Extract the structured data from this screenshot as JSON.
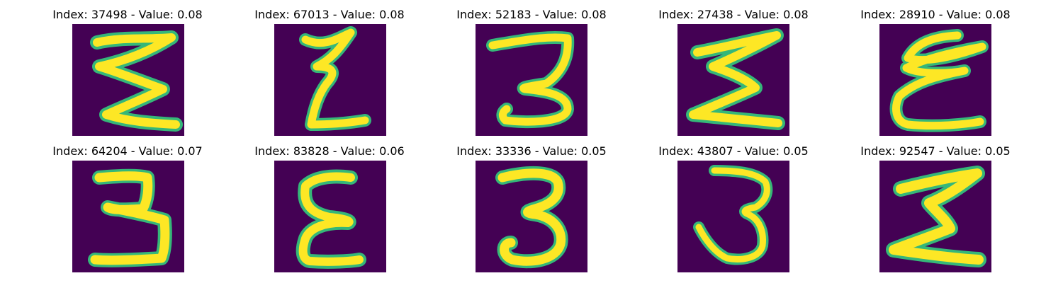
{
  "panels": [
    {
      "title": "Index: 37498 - Value: 0.08",
      "glyph": "sigma"
    },
    {
      "title": "Index: 67013 - Value: 0.08",
      "glyph": "z-slant"
    },
    {
      "title": "Index: 52183 - Value: 0.08",
      "glyph": "three"
    },
    {
      "title": "Index: 27438 - Value: 0.08",
      "glyph": "sigma"
    },
    {
      "title": "Index: 28910 - Value: 0.08",
      "glyph": "epsilon-loop"
    },
    {
      "title": "Index: 64204 - Value: 0.07",
      "glyph": "three"
    },
    {
      "title": "Index: 83828 - Value: 0.06",
      "glyph": "epsilon"
    },
    {
      "title": "Index: 33336 - Value: 0.05",
      "glyph": "three-round"
    },
    {
      "title": "Index: 43807 - Value: 0.05",
      "glyph": "three-tall"
    },
    {
      "title": "Index: 92547 - Value: 0.05",
      "glyph": "sigma"
    }
  ],
  "colors": {
    "background": "#440154",
    "stroke": "#fde725",
    "edge": "#35b779"
  }
}
